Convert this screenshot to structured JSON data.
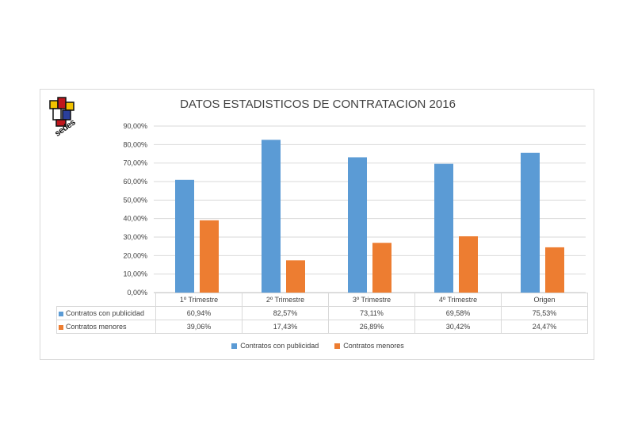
{
  "logo": {
    "text": "sedes"
  },
  "chart_data": {
    "type": "bar",
    "title": "DATOS ESTADISTICOS DE CONTRATACION 2016",
    "xlabel": "",
    "ylabel": "",
    "ylim": [
      0,
      90
    ],
    "yticks": [
      "0,00%",
      "10,00%",
      "20,00%",
      "30,00%",
      "40,00%",
      "50,00%",
      "60,00%",
      "70,00%",
      "80,00%",
      "90,00%"
    ],
    "categories": [
      "1º Trimestre",
      "2º Trimestre",
      "3º Trimestre",
      "4º Trimestre",
      "Origen"
    ],
    "series": [
      {
        "name": "Contratos con publicidad",
        "color": "#5b9bd5",
        "values": [
          60.94,
          82.57,
          73.11,
          69.58,
          75.53
        ],
        "labels": [
          "60,94%",
          "82,57%",
          "73,11%",
          "69,58%",
          "75,53%"
        ]
      },
      {
        "name": "Contratos menores",
        "color": "#ed7d31",
        "values": [
          39.06,
          17.43,
          26.89,
          30.42,
          24.47
        ],
        "labels": [
          "39,06%",
          "17,43%",
          "26,89%",
          "30,42%",
          "24,47%"
        ]
      }
    ],
    "grid": true,
    "legend": "bottom",
    "data_table": true
  }
}
